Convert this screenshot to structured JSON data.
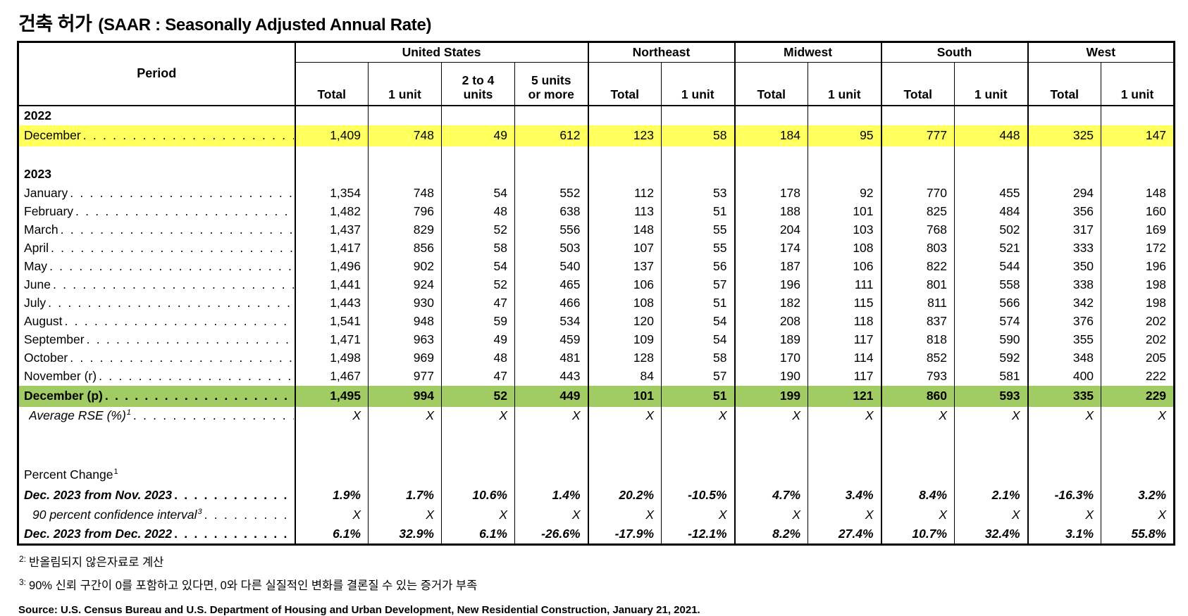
{
  "title": {
    "ko": "건축 허가",
    "en": "(SAAR : Seasonally Adjusted Annual Rate)"
  },
  "colors": {
    "highlight_yellow": "#FFFF5E",
    "highlight_green": "#A1CB63"
  },
  "table": {
    "period_header": "Period",
    "groups": [
      {
        "label": "United States",
        "columns": [
          "Total",
          "1 unit",
          "2 to 4\nunits",
          "5 units\nor more"
        ]
      },
      {
        "label": "Northeast",
        "columns": [
          "Total",
          "1 unit"
        ]
      },
      {
        "label": "Midwest",
        "columns": [
          "Total",
          "1 unit"
        ]
      },
      {
        "label": "South",
        "columns": [
          "Total",
          "1 unit"
        ]
      },
      {
        "label": "West",
        "columns": [
          "Total",
          "1 unit"
        ]
      }
    ],
    "rows": [
      {
        "type": "year",
        "label": "2022"
      },
      {
        "type": "data",
        "style": "regular",
        "highlight": "yellow",
        "label": "December",
        "values": [
          "1,409",
          "748",
          "49",
          "612",
          "123",
          "58",
          "184",
          "95",
          "777",
          "448",
          "325",
          "147"
        ]
      },
      {
        "type": "blank"
      },
      {
        "type": "year",
        "label": "2023"
      },
      {
        "type": "data",
        "style": "regular",
        "label": "January",
        "values": [
          "1,354",
          "748",
          "54",
          "552",
          "112",
          "53",
          "178",
          "92",
          "770",
          "455",
          "294",
          "148"
        ]
      },
      {
        "type": "data",
        "style": "regular",
        "label": "February",
        "values": [
          "1,482",
          "796",
          "48",
          "638",
          "113",
          "51",
          "188",
          "101",
          "825",
          "484",
          "356",
          "160"
        ]
      },
      {
        "type": "data",
        "style": "regular",
        "label": "March",
        "values": [
          "1,437",
          "829",
          "52",
          "556",
          "148",
          "55",
          "204",
          "103",
          "768",
          "502",
          "317",
          "169"
        ]
      },
      {
        "type": "data",
        "style": "regular",
        "label": "April",
        "values": [
          "1,417",
          "856",
          "58",
          "503",
          "107",
          "55",
          "174",
          "108",
          "803",
          "521",
          "333",
          "172"
        ]
      },
      {
        "type": "data",
        "style": "regular",
        "label": "May",
        "values": [
          "1,496",
          "902",
          "54",
          "540",
          "137",
          "56",
          "187",
          "106",
          "822",
          "544",
          "350",
          "196"
        ]
      },
      {
        "type": "data",
        "style": "regular",
        "label": "June",
        "values": [
          "1,441",
          "924",
          "52",
          "465",
          "106",
          "57",
          "196",
          "111",
          "801",
          "558",
          "338",
          "198"
        ]
      },
      {
        "type": "data",
        "style": "regular",
        "label": "July",
        "values": [
          "1,443",
          "930",
          "47",
          "466",
          "108",
          "51",
          "182",
          "115",
          "811",
          "566",
          "342",
          "198"
        ]
      },
      {
        "type": "data",
        "style": "regular",
        "label": "August",
        "values": [
          "1,541",
          "948",
          "59",
          "534",
          "120",
          "54",
          "208",
          "118",
          "837",
          "574",
          "376",
          "202"
        ]
      },
      {
        "type": "data",
        "style": "regular",
        "label": "September",
        "values": [
          "1,471",
          "963",
          "49",
          "459",
          "109",
          "54",
          "189",
          "117",
          "818",
          "590",
          "355",
          "202"
        ]
      },
      {
        "type": "data",
        "style": "regular",
        "label": "October",
        "values": [
          "1,498",
          "969",
          "48",
          "481",
          "128",
          "58",
          "170",
          "114",
          "852",
          "592",
          "348",
          "205"
        ]
      },
      {
        "type": "data",
        "style": "regular",
        "label": "November (r)",
        "values": [
          "1,467",
          "977",
          "47",
          "443",
          "84",
          "57",
          "190",
          "117",
          "793",
          "581",
          "400",
          "222"
        ]
      },
      {
        "type": "data",
        "style": "bold",
        "highlight": "green",
        "label": "December (p)",
        "values": [
          "1,495",
          "994",
          "52",
          "449",
          "101",
          "51",
          "199",
          "121",
          "860",
          "593",
          "335",
          "229"
        ]
      },
      {
        "type": "data",
        "style": "italic",
        "indent": 1,
        "label": "Average RSE (%)",
        "sup": "1",
        "values": [
          "X",
          "X",
          "X",
          "X",
          "X",
          "X",
          "X",
          "X",
          "X",
          "X",
          "X",
          "X"
        ]
      },
      {
        "type": "blank",
        "tall": true
      },
      {
        "type": "label",
        "label": "Percent Change",
        "sup": "1"
      },
      {
        "type": "data",
        "style": "bolditalic",
        "foot": true,
        "label": "Dec. 2023 from Nov. 2023",
        "values": [
          "1.9%",
          "1.7%",
          "10.6%",
          "1.4%",
          "20.2%",
          "-10.5%",
          "4.7%",
          "3.4%",
          "8.4%",
          "2.1%",
          "-16.3%",
          "3.2%"
        ]
      },
      {
        "type": "data",
        "style": "italic",
        "foot": true,
        "indent": 2,
        "label": "90 percent confidence interval",
        "sup": "3",
        "values": [
          "X",
          "X",
          "X",
          "X",
          "X",
          "X",
          "X",
          "X",
          "X",
          "X",
          "X",
          "X"
        ]
      },
      {
        "type": "data",
        "style": "bolditalic",
        "foot": true,
        "label": "Dec. 2023 from Dec. 2022",
        "values": [
          "6.1%",
          "32.9%",
          "6.1%",
          "-26.6%",
          "-17.9%",
          "-12.1%",
          "8.2%",
          "27.4%",
          "10.7%",
          "32.4%",
          "3.1%",
          "55.8%"
        ]
      }
    ]
  },
  "footnotes": [
    {
      "sup": "2:",
      "text": "반올림되지 않은자료로 계산"
    },
    {
      "sup": "3:",
      "text": "90% 신뢰 구간이 0를 포함하고 있다면, 0와 다른 실질적인 변화를 결론질 수 있는 증거가 부족"
    }
  ],
  "source": "Source: U.S. Census Bureau and U.S. Department of Housing and Urban Development, New Residential Construction, January 21, 2021."
}
